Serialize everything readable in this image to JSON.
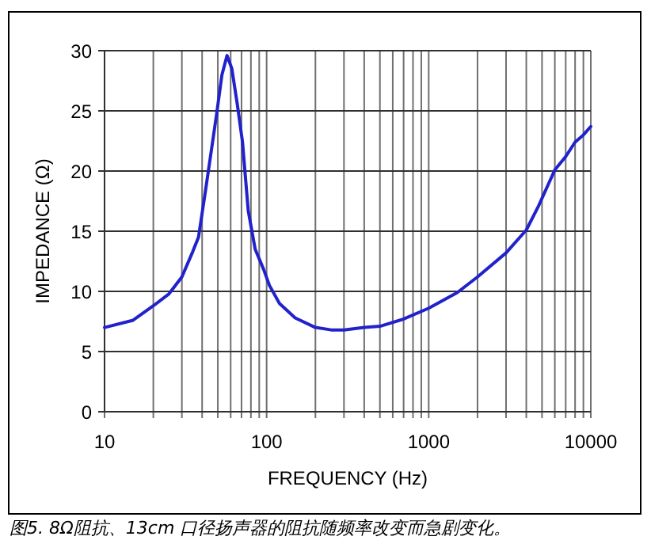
{
  "chart_data": {
    "type": "line",
    "xlabel": "FREQUENCY (Hz)",
    "ylabel": "IMPEDANCE (Ω)",
    "annotations": [
      "图5. 8Ω阻抗、13cm 口径扬声器的阻抗随频率改变而急剧变化。"
    ],
    "log": "x",
    "grid": true,
    "marker": "none",
    "line_style": "solid",
    "xlim": [
      10,
      10000
    ],
    "ylim": [
      0,
      30
    ],
    "xticks": [
      10,
      {
        "value": 20,
        "label": null
      },
      {
        "value": 30,
        "label": null
      },
      {
        "value": 40,
        "label": null
      },
      {
        "value": 50,
        "label": null
      },
      {
        "value": 60,
        "label": null
      },
      {
        "value": 70,
        "label": null
      },
      {
        "value": 80,
        "label": null
      },
      {
        "value": 90,
        "label": null
      },
      100,
      {
        "value": 200,
        "label": null
      },
      {
        "value": 300,
        "label": null
      },
      {
        "value": 400,
        "label": null
      },
      {
        "value": 500,
        "label": null
      },
      {
        "value": 600,
        "label": null
      },
      {
        "value": 700,
        "label": null
      },
      {
        "value": 800,
        "label": null
      },
      {
        "value": 900,
        "label": null
      },
      1000,
      {
        "value": 2000,
        "label": null
      },
      {
        "value": 3000,
        "label": null
      },
      {
        "value": 4000,
        "label": null
      },
      {
        "value": 5000,
        "label": null
      },
      {
        "value": 6000,
        "label": null
      },
      {
        "value": 7000,
        "label": null
      },
      {
        "value": 8000,
        "label": null
      },
      {
        "value": 9000,
        "label": null
      },
      10000
    ],
    "yticks": [
      0,
      5,
      10,
      15,
      20,
      25,
      30
    ],
    "series": [
      {
        "color": "#2222cc",
        "x": [
          10,
          15,
          20,
          25,
          30,
          35,
          38,
          42,
          49,
          53,
          57,
          61,
          66,
          71,
          77,
          85,
          96,
          104,
          120,
          150,
          200,
          250,
          300,
          400,
          500,
          700,
          1000,
          1500,
          2000,
          3000,
          4000,
          4760,
          6000,
          7000,
          8000,
          9000,
          10000
        ],
        "values": [
          7.0,
          7.6,
          8.8,
          9.8,
          11.2,
          13.3,
          14.5,
          18.4,
          24.6,
          28.0,
          29.6,
          28.5,
          25.5,
          22.4,
          16.7,
          13.5,
          11.8,
          10.5,
          9.0,
          7.8,
          7.0,
          6.8,
          6.8,
          7.0,
          7.1,
          7.7,
          8.6,
          9.9,
          11.2,
          13.2,
          15.1,
          17.1,
          20.1,
          21.2,
          22.4,
          23.0,
          23.7
        ]
      }
    ]
  }
}
